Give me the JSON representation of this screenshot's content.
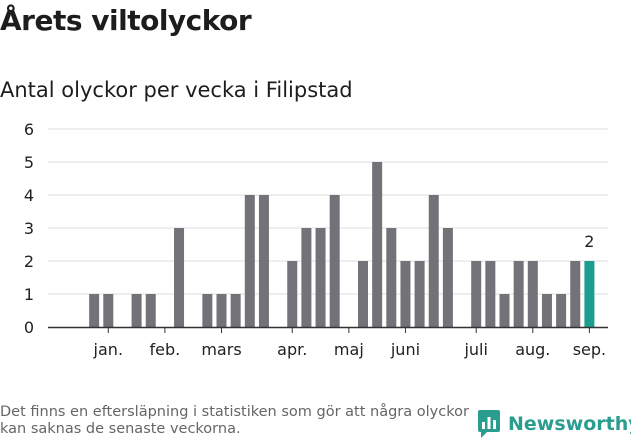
{
  "header": {
    "title": "Årets viltolyckor",
    "subtitle": "Antal olyckor per vecka i Filipstad"
  },
  "footer": {
    "note": "Det finns en eftersläpning i statistiken som gör att några olyckor kan saknas de senaste veckorna.",
    "brand": "Newsworthy"
  },
  "colors": {
    "bar": "#737278",
    "highlight": "#1a9e8f",
    "grid": "#dddddd",
    "axis": "#333333",
    "text": "#222222"
  },
  "chart_data": {
    "type": "bar",
    "title": "Antal olyckor per vecka i Filipstad",
    "xlabel": "",
    "ylabel": "",
    "ylim": [
      0,
      6
    ],
    "yticks": [
      0,
      1,
      2,
      3,
      4,
      5,
      6
    ],
    "grid": true,
    "x_unit": "week",
    "weeks": [
      1,
      2,
      3,
      4,
      5,
      6,
      7,
      8,
      9,
      10,
      11,
      12,
      13,
      14,
      15,
      16,
      17,
      18,
      19,
      20,
      21,
      22,
      23,
      24,
      25,
      26,
      27,
      28,
      29,
      30,
      31,
      32,
      33,
      34,
      35,
      36,
      37,
      38
    ],
    "values": [
      0,
      1,
      1,
      0,
      1,
      1,
      0,
      3,
      0,
      1,
      1,
      1,
      4,
      4,
      0,
      2,
      3,
      3,
      4,
      0,
      2,
      5,
      3,
      2,
      2,
      4,
      3,
      0,
      2,
      2,
      1,
      2,
      2,
      1,
      1,
      2,
      2,
      0
    ],
    "highlight_week": 37,
    "highlight_label": "2",
    "month_labels": [
      {
        "label": "jan.",
        "week": 3
      },
      {
        "label": "feb.",
        "week": 7
      },
      {
        "label": "mars",
        "week": 11
      },
      {
        "label": "apr.",
        "week": 16
      },
      {
        "label": "maj",
        "week": 20
      },
      {
        "label": "juni",
        "week": 24
      },
      {
        "label": "juli",
        "week": 29
      },
      {
        "label": "aug.",
        "week": 33
      },
      {
        "label": "sep.",
        "week": 37
      }
    ]
  }
}
